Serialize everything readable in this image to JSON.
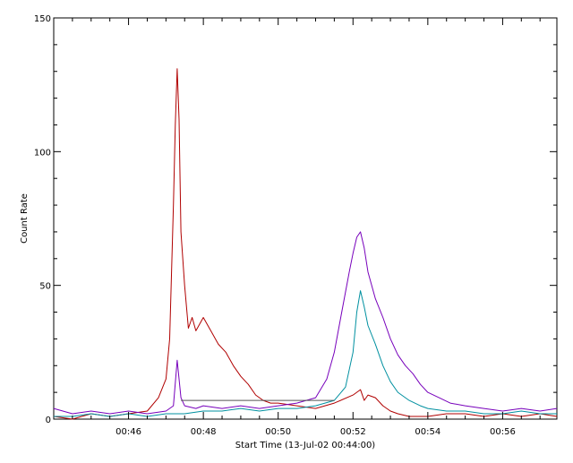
{
  "chart_data": {
    "type": "line",
    "title": "",
    "xlabel": "Start Time (13-Jul-02 00:44:00)",
    "ylabel": "Count Rate",
    "x_unit": "minutes",
    "xlim": [
      44.0,
      57.45
    ],
    "ylim": [
      0,
      150
    ],
    "x_ticks": [
      {
        "value": 46,
        "label": "00:46"
      },
      {
        "value": 48,
        "label": "00:48"
      },
      {
        "value": 50,
        "label": "00:50"
      },
      {
        "value": 52,
        "label": "00:52"
      },
      {
        "value": 54,
        "label": "00:54"
      },
      {
        "value": 56,
        "label": "00:56"
      }
    ],
    "y_ticks": [
      {
        "value": 0,
        "label": "0"
      },
      {
        "value": 50,
        "label": "50"
      },
      {
        "value": 100,
        "label": "100"
      },
      {
        "value": 150,
        "label": "150"
      }
    ],
    "grid": false,
    "legend": "none",
    "series": [
      {
        "color": "#b00000",
        "x": [
          44.0,
          44.5,
          45.0,
          45.5,
          46.0,
          46.5,
          46.8,
          47.0,
          47.1,
          47.2,
          47.25,
          47.3,
          47.35,
          47.4,
          47.5,
          47.6,
          47.7,
          47.8,
          48.0,
          48.2,
          48.4,
          48.6,
          48.8,
          49.0,
          49.2,
          49.4,
          49.6,
          49.8,
          50.0,
          50.5,
          51.0,
          51.5,
          52.0,
          52.2,
          52.3,
          52.4,
          52.6,
          52.8,
          53.0,
          53.2,
          53.5,
          54.0,
          54.5,
          55.0,
          55.5,
          56.0,
          56.5,
          57.0,
          57.45
        ],
        "y": [
          1,
          0,
          2,
          1,
          2,
          3,
          8,
          15,
          30,
          80,
          110,
          131,
          112,
          70,
          50,
          34,
          38,
          33,
          38,
          33,
          28,
          25,
          20,
          16,
          13,
          9,
          7,
          6,
          6,
          5,
          4,
          6,
          9,
          11,
          7,
          9,
          8,
          5,
          3,
          2,
          1,
          1,
          2,
          2,
          1,
          2,
          1,
          2,
          1
        ]
      },
      {
        "color": "#7700bb",
        "x": [
          44.0,
          44.5,
          45.0,
          45.5,
          46.0,
          46.5,
          47.0,
          47.2,
          47.3,
          47.4,
          47.5,
          47.8,
          48.0,
          48.5,
          49.0,
          49.5,
          50.0,
          50.5,
          51.0,
          51.3,
          51.5,
          51.7,
          51.9,
          52.0,
          52.1,
          52.2,
          52.3,
          52.4,
          52.6,
          52.8,
          53.0,
          53.2,
          53.4,
          53.6,
          53.8,
          54.0,
          54.3,
          54.6,
          55.0,
          55.5,
          56.0,
          56.5,
          57.0,
          57.45
        ],
        "y": [
          4,
          2,
          3,
          2,
          3,
          2,
          3,
          5,
          22,
          8,
          5,
          4,
          5,
          4,
          5,
          4,
          5,
          6,
          8,
          15,
          25,
          40,
          55,
          62,
          68,
          70,
          64,
          55,
          45,
          38,
          30,
          24,
          20,
          17,
          13,
          10,
          8,
          6,
          5,
          4,
          3,
          4,
          3,
          4
        ]
      },
      {
        "color": "#0090a0",
        "x": [
          44.0,
          44.5,
          45.0,
          45.5,
          46.0,
          46.5,
          47.0,
          47.5,
          48.0,
          48.5,
          49.0,
          49.5,
          50.0,
          50.5,
          51.0,
          51.5,
          51.8,
          52.0,
          52.1,
          52.2,
          52.3,
          52.4,
          52.6,
          52.8,
          53.0,
          53.2,
          53.5,
          53.8,
          54.0,
          54.5,
          55.0,
          55.5,
          56.0,
          56.5,
          57.0,
          57.45
        ],
        "y": [
          1,
          1,
          2,
          1,
          2,
          1,
          2,
          2,
          3,
          3,
          4,
          3,
          4,
          4,
          5,
          7,
          12,
          25,
          40,
          48,
          42,
          35,
          28,
          20,
          14,
          10,
          7,
          5,
          4,
          3,
          3,
          2,
          2,
          3,
          2,
          2
        ]
      },
      {
        "color": "#555555",
        "x": [
          47.4,
          51.5
        ],
        "y": [
          7,
          7
        ]
      }
    ]
  }
}
